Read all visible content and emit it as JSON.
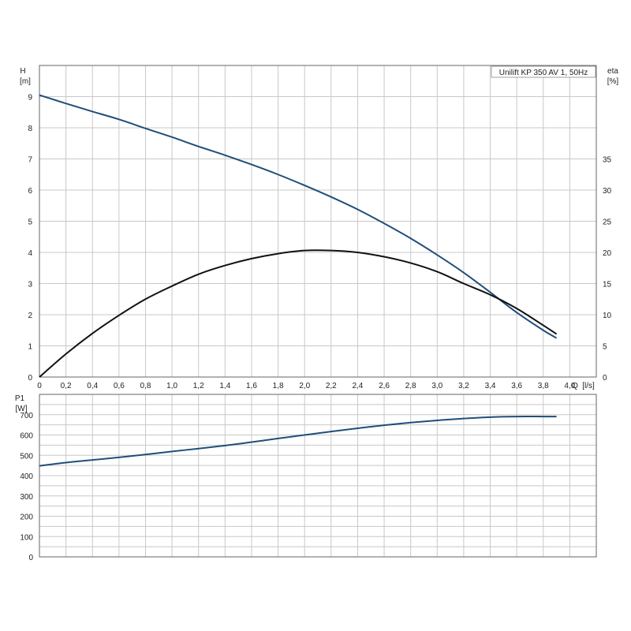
{
  "chart_data": [
    {
      "type": "line",
      "title": "Unilift KP 350 AV 1, 50Hz",
      "xlabel": "Q [l/s]",
      "x_unit_label": "Q",
      "x_unit": "[l/s]",
      "ylabel": "H",
      "ylabel_unit": "[m]",
      "y2label": "eta",
      "y2label_unit": "[%]",
      "xlim": [
        0,
        4.2
      ],
      "ylim": [
        0,
        10
      ],
      "y2lim": [
        0,
        50
      ],
      "x_ticks": [
        "0",
        "0,2",
        "0,4",
        "0,6",
        "0,8",
        "1,0",
        "1,2",
        "1,4",
        "1,6",
        "1,8",
        "2,0",
        "2,2",
        "2,4",
        "2,6",
        "2,8",
        "3,0",
        "3,2",
        "3,4",
        "3,6",
        "3,8",
        "4,0"
      ],
      "y_ticks": [
        "0",
        "1",
        "2",
        "3",
        "4",
        "5",
        "6",
        "7",
        "8",
        "9"
      ],
      "y2_ticks": [
        "0",
        "5",
        "10",
        "15",
        "20",
        "25",
        "30",
        "35"
      ],
      "grid": true,
      "series": [
        {
          "axis": "left",
          "color": "#1f4e7a",
          "x": [
            0,
            0.2,
            0.4,
            0.6,
            0.8,
            1.0,
            1.2,
            1.4,
            1.6,
            1.8,
            2.0,
            2.2,
            2.4,
            2.6,
            2.8,
            3.0,
            3.2,
            3.4,
            3.6,
            3.8,
            3.9
          ],
          "y": [
            9.05,
            8.78,
            8.52,
            8.27,
            7.98,
            7.7,
            7.4,
            7.12,
            6.82,
            6.5,
            6.15,
            5.78,
            5.38,
            4.93,
            4.45,
            3.92,
            3.35,
            2.72,
            2.07,
            1.5,
            1.25
          ]
        },
        {
          "axis": "right",
          "color": "#111111",
          "x": [
            0,
            0.2,
            0.4,
            0.6,
            0.8,
            1.0,
            1.2,
            1.4,
            1.6,
            1.8,
            2.0,
            2.2,
            2.4,
            2.6,
            2.8,
            3.0,
            3.2,
            3.4,
            3.6,
            3.8,
            3.9
          ],
          "y": [
            0,
            3.7,
            7,
            9.9,
            12.5,
            14.6,
            16.5,
            17.9,
            19.0,
            19.8,
            20.3,
            20.3,
            20.0,
            19.3,
            18.3,
            16.9,
            15.0,
            13.2,
            11.0,
            8.3,
            6.9
          ]
        }
      ]
    },
    {
      "type": "line",
      "ylabel": "P1",
      "ylabel_unit": "[W]",
      "xlim": [
        0,
        4.2
      ],
      "ylim": [
        0,
        800
      ],
      "y_ticks": [
        "0",
        "100",
        "200",
        "300",
        "400",
        "500",
        "600",
        "700"
      ],
      "grid": true,
      "series": [
        {
          "axis": "left",
          "color": "#1f4e7a",
          "x": [
            0,
            0.2,
            0.4,
            0.6,
            0.8,
            1.0,
            1.2,
            1.4,
            1.6,
            1.8,
            2.0,
            2.2,
            2.4,
            2.6,
            2.8,
            3.0,
            3.2,
            3.4,
            3.6,
            3.8,
            3.9
          ],
          "y": [
            448,
            464,
            477,
            490,
            504,
            519,
            533,
            548,
            565,
            583,
            600,
            617,
            633,
            648,
            661,
            672,
            681,
            688,
            691,
            691,
            691
          ]
        }
      ]
    }
  ]
}
